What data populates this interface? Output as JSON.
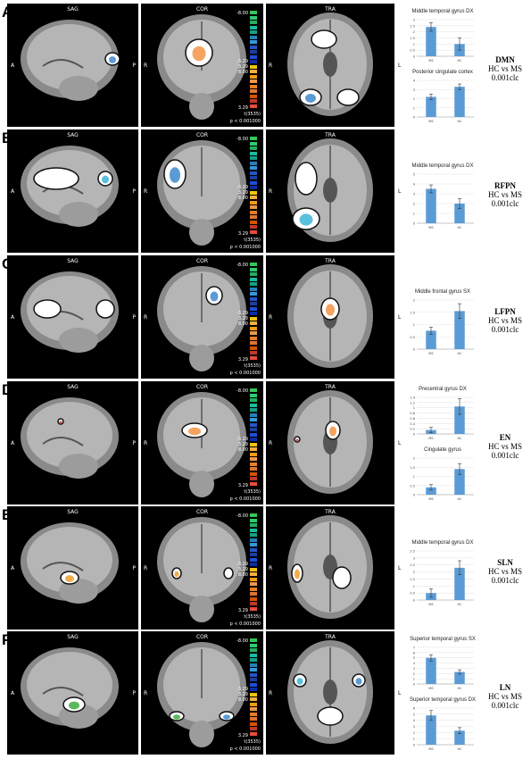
{
  "views": {
    "sag": "SAG",
    "cor": "COR",
    "tra": "TRA"
  },
  "orient": {
    "a": "A",
    "p": "P",
    "r": "R",
    "l": "L"
  },
  "colorbar": {
    "top": "-8.00",
    "mid1": "-3.29",
    "mid2": "3.29",
    "mid3": "8.00",
    "bottom": "3.29",
    "tstat": "t(3535)",
    "pval": "p < 0.001000"
  },
  "colors": {
    "bar": "#5b9bd5",
    "bg": "#000000"
  },
  "panels": [
    {
      "letter": "A",
      "network": "DMN",
      "comparison": "HC vs MS",
      "threshold": "0.001clc",
      "charts": [
        {
          "title": "Middle temporal gyrus DX",
          "categories": [
            "MS",
            "HC"
          ],
          "values": [
            2.4,
            1.0
          ],
          "errors": [
            0.35,
            0.5
          ],
          "ylim": [
            0,
            3
          ],
          "ticks": [
            0,
            0.5,
            1,
            1.5,
            2,
            2.5,
            3
          ]
        },
        {
          "title": "Posterior cingulate cortex",
          "categories": [
            "MS",
            "HC"
          ],
          "values": [
            2.2,
            3.3
          ],
          "errors": [
            0.3,
            0.3
          ],
          "ylim": [
            0,
            4
          ],
          "ticks": [
            0,
            1,
            2,
            3,
            4
          ]
        }
      ]
    },
    {
      "letter": "B",
      "network": "RFPN",
      "comparison": "HC vs MS",
      "threshold": "0.001clc",
      "charts": [
        {
          "title": "Middle temporal gyrus DX",
          "categories": [
            "MS",
            "HC"
          ],
          "values": [
            3.5,
            2.0
          ],
          "errors": [
            0.4,
            0.5
          ],
          "ylim": [
            0,
            5
          ],
          "ticks": [
            0,
            1,
            2,
            3,
            4,
            5
          ]
        }
      ]
    },
    {
      "letter": "C",
      "network": "LFPN",
      "comparison": "HC vs MS",
      "threshold": "0.001clc",
      "charts": [
        {
          "title": "Middle frontal gyrus SX",
          "categories": [
            "MS",
            "HC"
          ],
          "values": [
            0.75,
            1.55
          ],
          "errors": [
            0.15,
            0.3
          ],
          "ylim": [
            0,
            2
          ],
          "ticks": [
            0,
            0.5,
            1,
            1.5,
            2
          ]
        }
      ]
    },
    {
      "letter": "D",
      "network": "EN",
      "comparison": "HC vs MS",
      "threshold": "0.001clc",
      "charts": [
        {
          "title": "Precentral gyrus DX",
          "categories": [
            "MS",
            "HC"
          ],
          "values": [
            0.15,
            1.05
          ],
          "errors": [
            0.1,
            0.3
          ],
          "ylim": [
            0,
            1.4
          ],
          "ticks": [
            0,
            0.2,
            0.4,
            0.6,
            0.8,
            1,
            1.2,
            1.4
          ]
        },
        {
          "title": "Cingulate gyrus",
          "categories": [
            "MS",
            "HC"
          ],
          "values": [
            0.4,
            1.4
          ],
          "errors": [
            0.15,
            0.3
          ],
          "ylim": [
            0,
            2
          ],
          "ticks": [
            0,
            0.5,
            1,
            1.5,
            2
          ]
        }
      ]
    },
    {
      "letter": "E",
      "network": "SLN",
      "comparison": "HC vs MS",
      "threshold": "0.001clc",
      "charts": [
        {
          "title": "Middle temporal gyrus DX",
          "categories": [
            "MS",
            "HC"
          ],
          "values": [
            0.5,
            2.3
          ],
          "errors": [
            0.3,
            0.5
          ],
          "ylim": [
            0,
            3.5
          ],
          "ticks": [
            0,
            0.5,
            1,
            1.5,
            2,
            2.5,
            3,
            3.5
          ]
        }
      ]
    },
    {
      "letter": "F",
      "network": "LN",
      "comparison": "HC vs MS",
      "threshold": "0.001clc",
      "charts": [
        {
          "title": "Superior temporal gyrus SX",
          "categories": [
            "MS",
            "HC"
          ],
          "values": [
            5.0,
            2.3
          ],
          "errors": [
            0.6,
            0.4
          ],
          "ylim": [
            0,
            7
          ],
          "ticks": [
            0,
            1,
            2,
            3,
            4,
            5,
            6,
            7
          ]
        },
        {
          "title": "Superior temporal gyrus DX",
          "categories": [
            "MS",
            "HC"
          ],
          "values": [
            4.8,
            2.3
          ],
          "errors": [
            0.8,
            0.5
          ],
          "ylim": [
            0,
            6
          ],
          "ticks": [
            0,
            1,
            2,
            3,
            4,
            5,
            6
          ]
        }
      ]
    }
  ],
  "chart_data": [
    {
      "type": "bar",
      "title": "Middle temporal gyrus DX",
      "categories": [
        "MS",
        "HC"
      ],
      "values": [
        2.4,
        1.0
      ],
      "ylim": [
        0,
        3
      ]
    },
    {
      "type": "bar",
      "title": "Posterior cingulate cortex",
      "categories": [
        "MS",
        "HC"
      ],
      "values": [
        2.2,
        3.3
      ],
      "ylim": [
        0,
        4
      ]
    },
    {
      "type": "bar",
      "title": "Middle temporal gyrus DX",
      "categories": [
        "MS",
        "HC"
      ],
      "values": [
        3.5,
        2.0
      ],
      "ylim": [
        0,
        5
      ]
    },
    {
      "type": "bar",
      "title": "Middle frontal gyrus SX",
      "categories": [
        "MS",
        "HC"
      ],
      "values": [
        0.75,
        1.55
      ],
      "ylim": [
        0,
        2
      ]
    },
    {
      "type": "bar",
      "title": "Precentral gyrus DX",
      "categories": [
        "MS",
        "HC"
      ],
      "values": [
        0.15,
        1.05
      ],
      "ylim": [
        0,
        1.4
      ]
    },
    {
      "type": "bar",
      "title": "Cingulate gyrus",
      "categories": [
        "MS",
        "HC"
      ],
      "values": [
        0.4,
        1.4
      ],
      "ylim": [
        0,
        2
      ]
    },
    {
      "type": "bar",
      "title": "Middle temporal gyrus DX",
      "categories": [
        "MS",
        "HC"
      ],
      "values": [
        0.5,
        2.3
      ],
      "ylim": [
        0,
        3.5
      ]
    },
    {
      "type": "bar",
      "title": "Superior temporal gyrus SX",
      "categories": [
        "MS",
        "HC"
      ],
      "values": [
        5.0,
        2.3
      ],
      "ylim": [
        0,
        7
      ]
    },
    {
      "type": "bar",
      "title": "Superior temporal gyrus DX",
      "categories": [
        "MS",
        "HC"
      ],
      "values": [
        4.8,
        2.3
      ],
      "ylim": [
        0,
        6
      ]
    }
  ]
}
